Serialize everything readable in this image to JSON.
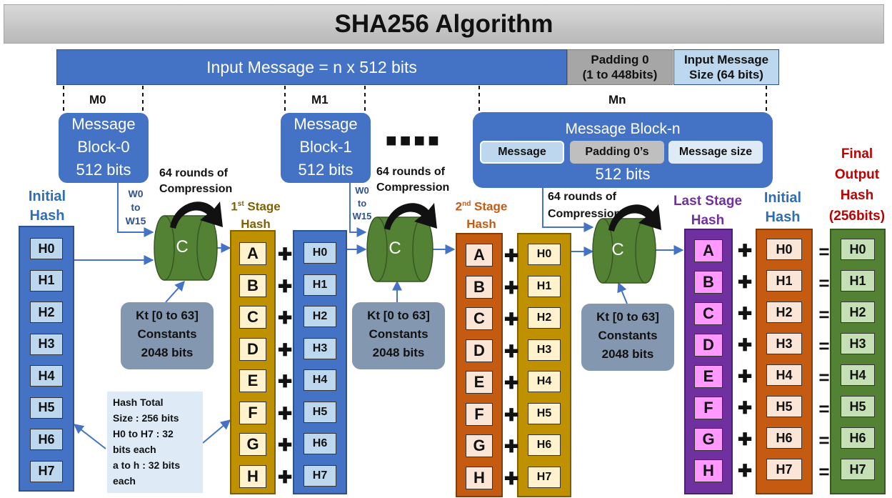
{
  "title": "SHA256 Algorithm",
  "input_message": "Input Message = n x 512 bits",
  "padding": {
    "line1": "Padding 0",
    "line2": "(1 to 448bits)"
  },
  "input_size": {
    "line1": "Input Message",
    "line2": "Size (64 bits)"
  },
  "blocks": {
    "m0": {
      "label": "M0",
      "l1": "Message",
      "l2": "Block-0",
      "l3": "512 bits"
    },
    "m1": {
      "label": "M1",
      "l1": "Message",
      "l2": "Block-1",
      "l3": "512 bits"
    },
    "mn": {
      "label": "Mn",
      "title": "Message Block-n",
      "bits": "512 bits",
      "parts": [
        "Message",
        "Padding 0’s",
        "Message size"
      ]
    }
  },
  "rounds": {
    "l1": "64 rounds of",
    "l2": "Compression"
  },
  "words": [
    "W0",
    "to",
    "W15"
  ],
  "compress_letter": "C",
  "constants": {
    "l1": "Kt [0 to 63]",
    "l2": "Constants",
    "l3": "2048 bits"
  },
  "initial_hash_label": {
    "l1": "Initial",
    "l2": "Hash"
  },
  "stage1_label": {
    "l1": "1",
    "sup": "st",
    "l2": " Stage",
    "l3": "Hash"
  },
  "stage2_label": {
    "l1": "2",
    "sup": "nd",
    "l2": " Stage",
    "l3": "Hash"
  },
  "last_stage_label": {
    "l1": "Last Stage",
    "l2": "Hash"
  },
  "final_label": {
    "l1": "Final",
    "l2": "Output",
    "l3": "Hash",
    "l4": "(256bits)"
  },
  "hash_regs": [
    "H0",
    "H1",
    "H2",
    "H3",
    "H4",
    "H5",
    "H6",
    "H7"
  ],
  "letter_regs": [
    "A",
    "B",
    "C",
    "D",
    "E",
    "F",
    "G",
    "H"
  ],
  "plus": "✚",
  "equals": "=",
  "ellipsis": "■■■■",
  "note": [
    "Hash Total",
    "Size : 256 bits",
    "H0 to H7 : 32",
    "bits each",
    "a to h : 32 bits",
    "each"
  ],
  "colors": {
    "blue": "#4472c4",
    "light_blue": "#bdd7ee",
    "gold": "#bf9000",
    "light_yellow": "#fff2cc",
    "orange": "#c55a11",
    "light_orange": "#fbe5d6",
    "purple": "#7030a0",
    "pink": "#ff99ff",
    "green": "#548235",
    "light_green": "#c5e0b4",
    "gray": "#8497b0",
    "cylinder": "#548235"
  }
}
